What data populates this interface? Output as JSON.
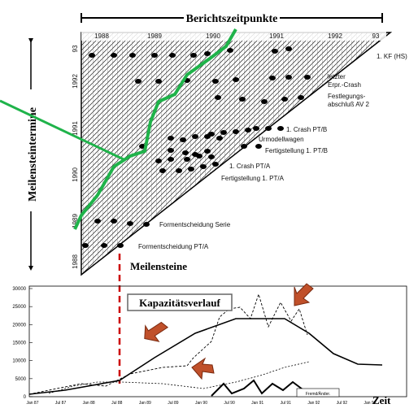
{
  "header": {
    "title": "Berichtszeitpunkte",
    "side_title": "Meilensteintermine"
  },
  "top_years": [
    "1988",
    "1989",
    "1990",
    "1991",
    "1992",
    "93"
  ],
  "left_years": [
    "93",
    "1992",
    "1991",
    "1990",
    "1989",
    "1988"
  ],
  "milestones": [
    "1. KF (HS)",
    "letzter",
    "Erpr.-Crash",
    "Festlegungs-",
    "abschluß AV 2",
    "1. Crash PT/B",
    "Urmodellwagen",
    "Fertigstellung 1. PT/B",
    "1. Crash PT/A",
    "Fertigstellung 1. PT/A",
    "Formentscheidung Serie",
    "Formentscheidung PT/A"
  ],
  "section_label": "Meilensteine",
  "capacity": {
    "title": "Kapazitätsverlauf",
    "axis_label": "Zeit",
    "legend": "Fremd/Änder.",
    "y_labels": [
      "30000",
      "25000",
      "20000",
      "15000",
      "10000",
      "5000",
      "0"
    ],
    "x_labels": [
      "Jan 87",
      "Jul 87",
      "Jan 88",
      "Jul 88",
      "Jan 89",
      "Jul 89",
      "Jan 90",
      "Jul 90",
      "Jan 91",
      "Jul 91",
      "Jan 92",
      "Jul 92",
      "Jan 93"
    ]
  }
}
